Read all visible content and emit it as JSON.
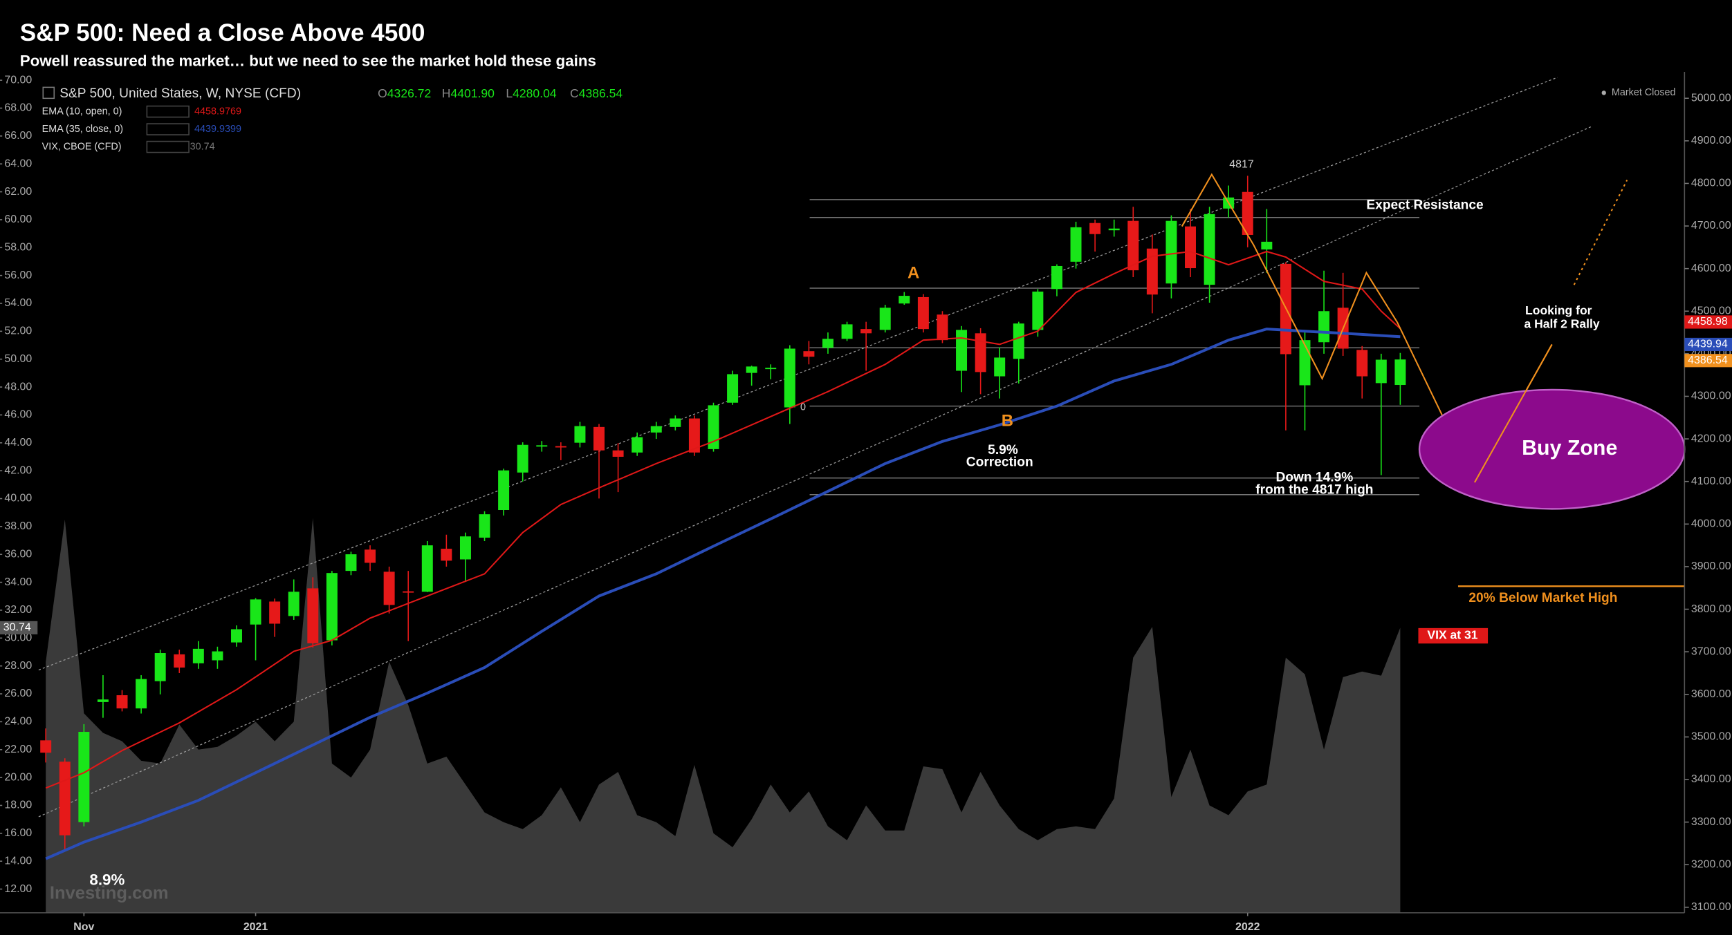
{
  "chart_data": {
    "type": "candlestick",
    "title": "S&P 500: Need a Close Above 4500",
    "subtitle": "Powell reassured the market… but we need to see the market hold these gains",
    "symbol": "S&P 500, United States, W, NYSE (CFD)",
    "legend_ohlc": [
      {
        "prefix": "O",
        "label": "4326.72"
      },
      {
        "prefix": "H",
        "label": "4401.90"
      },
      {
        "prefix": "L",
        "label": "4280.04"
      },
      {
        "prefix": "C",
        "label": "4386.54"
      }
    ],
    "up_color": "#19e619",
    "down_color": "#e61919",
    "open": [
      3492,
      3442,
      3300,
      3582,
      3598,
      3567,
      3631,
      3694,
      3673,
      3680,
      3722,
      3764,
      3818,
      3784,
      3849,
      3727,
      3890,
      3940,
      3888,
      3842,
      3841,
      3942,
      3917,
      3968,
      4033,
      4121,
      4182,
      4183,
      4191,
      4228,
      4173,
      4168,
      4215,
      4228,
      4248,
      4176,
      4285,
      4355,
      4365,
      4274,
      4406,
      4414,
      4435,
      4458,
      4456,
      4518,
      4533,
      4492,
      4360,
      4448,
      4347,
      4388,
      4456,
      4552,
      4616,
      4707,
      4690,
      4712,
      4647,
      4565,
      4699,
      4562,
      4741,
      4780,
      4645,
      4611,
      4326,
      4427,
      4508,
      4409,
      4331,
      4326.72
    ],
    "high": [
      3520,
      3450,
      3530,
      3645,
      3610,
      3645,
      3705,
      3705,
      3725,
      3712,
      3762,
      3826,
      3825,
      3870,
      3875,
      3890,
      3935,
      3950,
      3900,
      3890,
      3960,
      3975,
      3980,
      4030,
      4130,
      4192,
      4195,
      4192,
      4240,
      4235,
      4190,
      4215,
      4240,
      4255,
      4255,
      4285,
      4360,
      4372,
      4375,
      4420,
      4430,
      4450,
      4475,
      4475,
      4515,
      4545,
      4540,
      4500,
      4465,
      4460,
      4415,
      4475,
      4552,
      4610,
      4710,
      4715,
      4715,
      4745,
      4680,
      4725,
      4740,
      4745,
      4795,
      4818,
      4740,
      4615,
      4450,
      4595,
      4590,
      4418,
      4400,
      4401.9
    ],
    "low": [
      3440,
      3235,
      3290,
      3545,
      3560,
      3555,
      3600,
      3650,
      3660,
      3660,
      3712,
      3680,
      3735,
      3775,
      3710,
      3715,
      3880,
      3890,
      3790,
      3725,
      3840,
      3900,
      3865,
      3960,
      4020,
      4100,
      4170,
      4150,
      4180,
      4060,
      4075,
      4160,
      4200,
      4220,
      4160,
      4170,
      4280,
      4325,
      4340,
      4235,
      4375,
      4400,
      4430,
      4360,
      4450,
      4515,
      4450,
      4425,
      4310,
      4305,
      4295,
      4330,
      4440,
      4535,
      4600,
      4640,
      4675,
      4580,
      4495,
      4530,
      4580,
      4520,
      4720,
      4650,
      4590,
      4220,
      4220,
      4400,
      4395,
      4295,
      4115,
      4280.04
    ],
    "close": [
      3463,
      3269,
      3512,
      3588,
      3567,
      3636,
      3697,
      3663,
      3707,
      3701,
      3753,
      3823,
      3766,
      3841,
      3720,
      3885,
      3929,
      3909,
      3810,
      3841,
      3950,
      3914,
      3971,
      4023,
      4126,
      4186,
      4185,
      4181,
      4230,
      4173,
      4158,
      4204,
      4230,
      4248,
      4168,
      4279,
      4352,
      4370,
      4367,
      4412,
      4393,
      4435,
      4469,
      4448,
      4508,
      4536,
      4458,
      4432,
      4456,
      4357,
      4391,
      4471,
      4546,
      4606,
      4697,
      4681,
      4694,
      4596,
      4539,
      4712,
      4601,
      4728,
      4767,
      4679,
      4663,
      4399,
      4432,
      4500,
      4412,
      4347,
      4386,
      4386.54
    ],
    "series": [
      {
        "name": "EMA (10, open, 0)",
        "color": "#e01818",
        "end_label": "4458.98",
        "x": [
          0,
          2,
          4,
          7,
          10,
          13,
          15,
          17,
          20,
          23,
          25,
          27,
          29,
          32,
          35,
          37,
          39,
          41,
          44,
          46,
          48,
          50,
          52,
          54,
          56,
          58,
          60,
          62,
          64,
          65,
          67,
          69,
          70,
          71
        ],
        "values": [
          3380,
          3416,
          3468,
          3533,
          3611,
          3701,
          3727,
          3779,
          3831,
          3883,
          3980,
          4046,
          4085,
          4142,
          4194,
          4233,
          4272,
          4311,
          4375,
          4432,
          4437,
          4422,
          4453,
          4544,
          4588,
          4629,
          4640,
          4609,
          4640,
          4627,
          4570,
          4552,
          4500,
          4458.9769
        ]
      },
      {
        "name": "EMA (35, close, 0)",
        "color": "#2a4db8",
        "end_label": "4439.94",
        "x": [
          0,
          2,
          5,
          8,
          11,
          14,
          17,
          20,
          23,
          26,
          29,
          32,
          35,
          38,
          41,
          44,
          47,
          50,
          53,
          56,
          59,
          62,
          64,
          66,
          68,
          71
        ],
        "values": [
          3214,
          3253,
          3300,
          3351,
          3416,
          3481,
          3546,
          3603,
          3663,
          3748,
          3831,
          3883,
          3948,
          4012,
          4077,
          4142,
          4194,
          4233,
          4277,
          4336,
          4375,
          4432,
          4458,
          4453,
          4448,
          4439.9399
        ]
      },
      {
        "name": "VIX, CBOE (CFD)",
        "color": "#3a3a3a",
        "axis": "y2",
        "values": [
          28.3,
          38.5,
          24.6,
          23.2,
          22.6,
          21.2,
          21.0,
          23.8,
          22.0,
          22.2,
          23.0,
          24.0,
          22.6,
          24.0,
          38.6,
          21.0,
          20.0,
          22.0,
          28.3,
          25.2,
          21.0,
          21.5,
          19.5,
          17.5,
          16.8,
          16.3,
          17.3,
          19.3,
          16.8,
          19.5,
          20.4,
          17.3,
          16.8,
          15.8,
          20.9,
          16.0,
          15.0,
          17.0,
          19.5,
          17.5,
          19.0,
          16.5,
          15.5,
          18.0,
          16.2,
          16.2,
          20.8,
          20.6,
          17.5,
          20.4,
          18.0,
          16.3,
          15.5,
          16.3,
          16.5,
          16.3,
          18.5,
          28.6,
          30.8,
          18.6,
          22.0,
          18.0,
          17.3,
          19.0,
          19.5,
          28.6,
          27.4,
          22.0,
          27.2,
          27.6,
          27.3,
          30.74
        ]
      }
    ],
    "levels": [
      4762,
      4720,
      4554,
      4414,
      4277,
      4108,
      4069
    ],
    "level_color": "#8a8a8a",
    "target_level": 3854,
    "target_color": "#f0901e",
    "xlim": [
      -2.4,
      85.9
    ],
    "xticks": [
      {
        "value": 2,
        "label": "Nov"
      },
      {
        "value": 11,
        "label": "2021"
      },
      {
        "value": 63,
        "label": "2022"
      }
    ],
    "ylim": [
      3087,
      5062
    ],
    "yticks": [
      {
        "value": 3100,
        "label": "3100.00"
      },
      {
        "value": 3200,
        "label": "3200.00"
      },
      {
        "value": 3300,
        "label": "3300.00"
      },
      {
        "value": 3400,
        "label": "3400.00"
      },
      {
        "value": 3500,
        "label": "3500.00"
      },
      {
        "value": 3600,
        "label": "3600.00"
      },
      {
        "value": 3700,
        "label": "3700.00"
      },
      {
        "value": 3800,
        "label": "3800.00"
      },
      {
        "value": 3900,
        "label": "3900.00"
      },
      {
        "value": 4000,
        "label": "4000.00"
      },
      {
        "value": 4100,
        "label": "4100.00"
      },
      {
        "value": 4200,
        "label": "4200.00"
      },
      {
        "value": 4300,
        "label": "4300.00"
      },
      {
        "value": 4400,
        "label": "4400.00"
      },
      {
        "value": 4500,
        "label": "4500.00"
      },
      {
        "value": 4600,
        "label": "4600.00"
      },
      {
        "value": 4700,
        "label": "4700.00"
      },
      {
        "value": 4800,
        "label": "4800.00"
      },
      {
        "value": 4900,
        "label": "4900.00"
      },
      {
        "value": 5000,
        "label": "5000.00"
      }
    ],
    "y2lim": [
      10.3,
      70.6
    ],
    "y2ticks": [
      {
        "value": 12,
        "label": "12.00"
      },
      {
        "value": 14,
        "label": "14.00"
      },
      {
        "value": 16,
        "label": "16.00"
      },
      {
        "value": 18,
        "label": "18.00"
      },
      {
        "value": 20,
        "label": "20.00"
      },
      {
        "value": 22,
        "label": "22.00"
      },
      {
        "value": 24,
        "label": "24.00"
      },
      {
        "value": 26,
        "label": "26.00"
      },
      {
        "value": 28,
        "label": "28.00"
      },
      {
        "value": 30,
        "label": "30.00"
      },
      {
        "value": 32,
        "label": "32.00"
      },
      {
        "value": 34,
        "label": "34.00"
      },
      {
        "value": 36,
        "label": "36.00"
      },
      {
        "value": 38,
        "label": "38.00"
      },
      {
        "value": 40,
        "label": "40.00"
      },
      {
        "value": 42,
        "label": "42.00"
      },
      {
        "value": 44,
        "label": "44.00"
      },
      {
        "value": 46,
        "label": "46.00"
      },
      {
        "value": 48,
        "label": "48.00"
      },
      {
        "value": 50,
        "label": "50.00"
      },
      {
        "value": 52,
        "label": "52.00"
      },
      {
        "value": 54,
        "label": "54.00"
      },
      {
        "value": 56,
        "label": "56.00"
      },
      {
        "value": 58,
        "label": "58.00"
      },
      {
        "value": 60,
        "label": "60.00"
      },
      {
        "value": 62,
        "label": "62.00"
      },
      {
        "value": 64,
        "label": "64.00"
      },
      {
        "value": 66,
        "label": "66.00"
      },
      {
        "value": 68,
        "label": "68.00"
      },
      {
        "value": 70,
        "label": "70.00"
      }
    ],
    "annotations": [
      "4817",
      "A",
      "B",
      "0",
      "Expect Resistance",
      "5.9%",
      "Correction",
      "Down 14.9%",
      "from the 4817 high",
      "Looking for",
      "a Half 2 Rally",
      "Buy Zone",
      "20% Below Market High",
      "VIX at 31",
      "8.9%",
      "Market Closed"
    ],
    "watermark": "Investing.com"
  }
}
